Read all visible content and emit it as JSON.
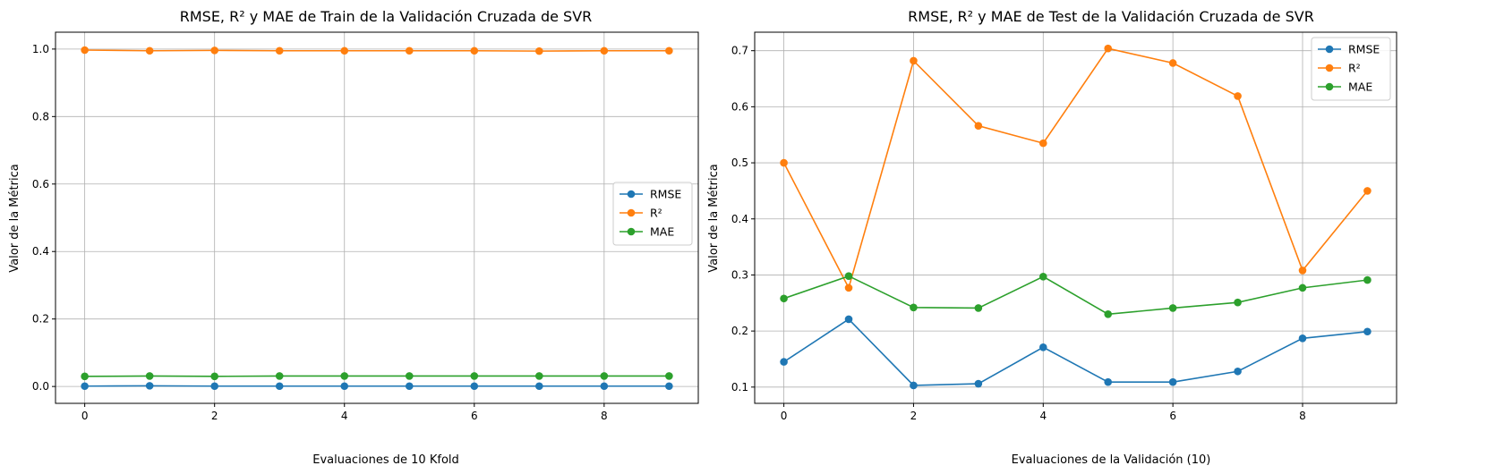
{
  "chart_data": [
    {
      "type": "line",
      "title": "RMSE, R² y MAE de Train de la Validación Cruzada de SVR",
      "xlabel": "Evaluaciones de 10 Kfold",
      "ylabel": "Valor de la Métrica",
      "x": [
        0,
        1,
        2,
        3,
        4,
        5,
        6,
        7,
        8,
        9
      ],
      "xlim": [
        -0.45,
        9.45
      ],
      "ylim": [
        -0.05,
        1.05
      ],
      "xticks": [
        "0",
        "2",
        "4",
        "6",
        "8"
      ],
      "yticks": [
        "0.0",
        "0.2",
        "0.4",
        "0.6",
        "0.8",
        "1.0"
      ],
      "grid": true,
      "legend_position": "center right",
      "series": [
        {
          "name": "RMSE",
          "color": "#1f77b4",
          "values": [
            0.001,
            0.002,
            0.001,
            0.001,
            0.001,
            0.001,
            0.001,
            0.001,
            0.001,
            0.001
          ]
        },
        {
          "name": "R²",
          "color": "#ff7f0e",
          "values": [
            0.997,
            0.995,
            0.996,
            0.995,
            0.995,
            0.995,
            0.995,
            0.994,
            0.995,
            0.995
          ]
        },
        {
          "name": "MAE",
          "color": "#2ca02c",
          "values": [
            0.03,
            0.031,
            0.03,
            0.031,
            0.031,
            0.031,
            0.031,
            0.031,
            0.031,
            0.031
          ]
        }
      ]
    },
    {
      "type": "line",
      "title": "RMSE, R² y MAE de Test de la Validación Cruzada de SVR",
      "xlabel": "Evaluaciones de la Validación (10)",
      "ylabel": "Valor de la Métrica",
      "x": [
        0,
        1,
        2,
        3,
        4,
        5,
        6,
        7,
        8,
        9
      ],
      "xlim": [
        -0.45,
        9.45
      ],
      "ylim": [
        0.071,
        0.733
      ],
      "xticks": [
        "0",
        "2",
        "4",
        "6",
        "8"
      ],
      "yticks": [
        "0.1",
        "0.2",
        "0.3",
        "0.4",
        "0.5",
        "0.6",
        "0.7"
      ],
      "grid": true,
      "legend_position": "upper right",
      "series": [
        {
          "name": "RMSE",
          "color": "#1f77b4",
          "values": [
            0.145,
            0.221,
            0.103,
            0.106,
            0.171,
            0.109,
            0.109,
            0.128,
            0.187,
            0.199
          ]
        },
        {
          "name": "R²",
          "color": "#ff7f0e",
          "values": [
            0.5,
            0.277,
            0.682,
            0.566,
            0.535,
            0.704,
            0.678,
            0.619,
            0.308,
            0.45
          ]
        },
        {
          "name": "MAE",
          "color": "#2ca02c",
          "values": [
            0.258,
            0.298,
            0.242,
            0.241,
            0.297,
            0.23,
            0.241,
            0.251,
            0.277,
            0.291
          ]
        }
      ]
    }
  ]
}
